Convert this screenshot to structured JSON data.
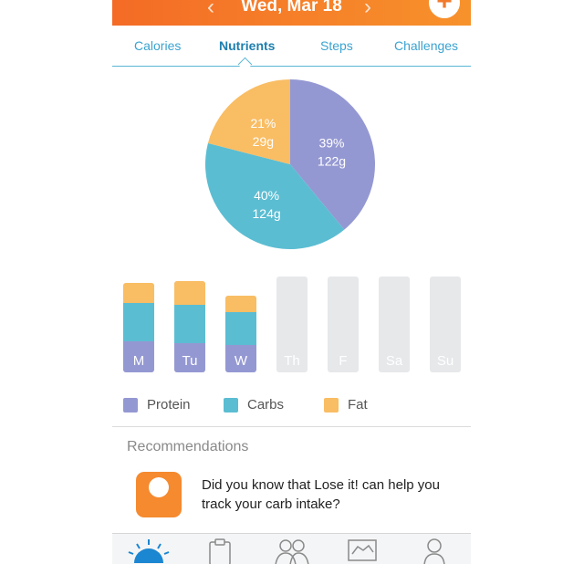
{
  "header": {
    "date": "Wed, Mar 18",
    "prev": "‹",
    "next": "›",
    "add": "+"
  },
  "tabs": [
    {
      "label": "Calories"
    },
    {
      "label": "Nutrients",
      "active": true
    },
    {
      "label": "Steps"
    },
    {
      "label": "Challenges"
    }
  ],
  "colors": {
    "protein": "#9498d2",
    "carbs": "#5bbdd2",
    "fat": "#f9bd64",
    "accent": "#f47c2c"
  },
  "chart_data": [
    {
      "type": "pie",
      "slices": [
        {
          "name": "Protein",
          "percent": "39%",
          "grams": "122g",
          "value": 39
        },
        {
          "name": "Carbs",
          "percent": "40%",
          "grams": "124g",
          "value": 40
        },
        {
          "name": "Fat",
          "percent": "21%",
          "grams": "29g",
          "value": 21
        }
      ]
    },
    {
      "type": "bar",
      "stacked": true,
      "categories": [
        "M",
        "Tu",
        "W",
        "Th",
        "F",
        "Sa",
        "Su"
      ],
      "series": [
        {
          "name": "Protein",
          "values": [
            34,
            32,
            30,
            0,
            0,
            0,
            0
          ]
        },
        {
          "name": "Carbs",
          "values": [
            42,
            42,
            36,
            0,
            0,
            0,
            0
          ]
        },
        {
          "name": "Fat",
          "values": [
            22,
            26,
            18,
            0,
            0,
            0,
            0
          ]
        }
      ],
      "ylim": [
        0,
        105
      ]
    }
  ],
  "legend": [
    {
      "label": "Protein"
    },
    {
      "label": "Carbs"
    },
    {
      "label": "Fat"
    }
  ],
  "recommendations": {
    "title": "Recommendations",
    "text": "Did you know that Lose it! can help you track your carb intake?"
  },
  "tabbar": [
    {
      "icon": "sunrise-icon"
    },
    {
      "icon": "clipboard-icon"
    },
    {
      "icon": "friends-icon"
    },
    {
      "icon": "chart-icon"
    },
    {
      "icon": "profile-icon"
    }
  ]
}
